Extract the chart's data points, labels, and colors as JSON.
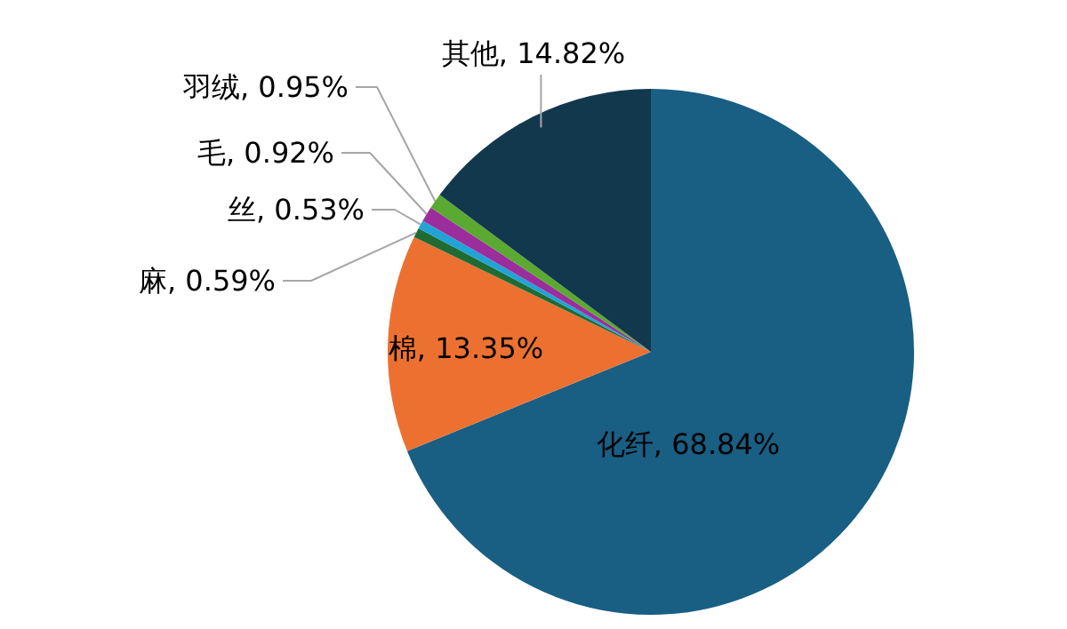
{
  "chart_data": {
    "type": "pie",
    "categories": [
      "化纤",
      "棉",
      "麻",
      "丝",
      "毛",
      "羽绒",
      "其他"
    ],
    "values": [
      68.84,
      13.35,
      0.59,
      0.53,
      0.92,
      0.95,
      14.82
    ],
    "value_labels": [
      "68.84%",
      "13.35%",
      "0.59%",
      "0.53%",
      "0.92%",
      "0.95%",
      "14.82%"
    ],
    "colors": [
      "#195e83",
      "#ec7131",
      "#1f6b33",
      "#21a3d6",
      "#9b2d9c",
      "#5aaa32",
      "#12384e"
    ]
  }
}
